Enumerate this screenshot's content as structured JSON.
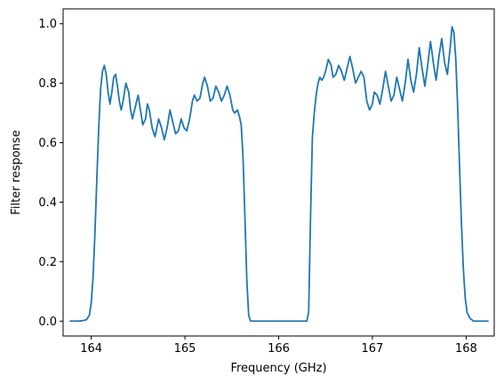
{
  "chart_data": {
    "type": "line",
    "title": "",
    "xlabel": "Frequency (GHz)",
    "ylabel": "Filter response",
    "xlim": [
      163.7,
      168.3
    ],
    "ylim": [
      -0.05,
      1.05
    ],
    "xticks": [
      164,
      165,
      166,
      167,
      168
    ],
    "xtick_labels": [
      "164",
      "165",
      "166",
      "167",
      "168"
    ],
    "yticks": [
      0.0,
      0.2,
      0.4,
      0.6,
      0.8,
      1.0
    ],
    "ytick_labels": [
      "0.0",
      "0.2",
      "0.4",
      "0.6",
      "0.8",
      "1.0"
    ],
    "grid": false,
    "legend": "none",
    "series": [
      {
        "color": "#1f77b4",
        "points": [
          [
            163.77,
            0.0
          ],
          [
            163.85,
            0.0
          ],
          [
            163.9,
            0.001
          ],
          [
            163.95,
            0.005
          ],
          [
            163.98,
            0.02
          ],
          [
            164.0,
            0.06
          ],
          [
            164.02,
            0.15
          ],
          [
            164.04,
            0.3
          ],
          [
            164.06,
            0.48
          ],
          [
            164.08,
            0.65
          ],
          [
            164.1,
            0.78
          ],
          [
            164.12,
            0.84
          ],
          [
            164.14,
            0.86
          ],
          [
            164.16,
            0.83
          ],
          [
            164.18,
            0.77
          ],
          [
            164.2,
            0.73
          ],
          [
            164.22,
            0.77
          ],
          [
            164.24,
            0.82
          ],
          [
            164.26,
            0.83
          ],
          [
            164.28,
            0.79
          ],
          [
            164.3,
            0.74
          ],
          [
            164.32,
            0.71
          ],
          [
            164.34,
            0.74
          ],
          [
            164.37,
            0.8
          ],
          [
            164.4,
            0.77
          ],
          [
            164.42,
            0.71
          ],
          [
            164.44,
            0.68
          ],
          [
            164.47,
            0.72
          ],
          [
            164.5,
            0.76
          ],
          [
            164.52,
            0.72
          ],
          [
            164.55,
            0.66
          ],
          [
            164.58,
            0.68
          ],
          [
            164.6,
            0.73
          ],
          [
            164.62,
            0.71
          ],
          [
            164.65,
            0.65
          ],
          [
            164.68,
            0.62
          ],
          [
            164.7,
            0.65
          ],
          [
            164.72,
            0.68
          ],
          [
            164.75,
            0.65
          ],
          [
            164.78,
            0.61
          ],
          [
            164.81,
            0.65
          ],
          [
            164.84,
            0.71
          ],
          [
            164.87,
            0.67
          ],
          [
            164.9,
            0.63
          ],
          [
            164.93,
            0.64
          ],
          [
            164.96,
            0.68
          ],
          [
            164.99,
            0.65
          ],
          [
            165.02,
            0.64
          ],
          [
            165.05,
            0.68
          ],
          [
            165.08,
            0.74
          ],
          [
            165.1,
            0.76
          ],
          [
            165.13,
            0.74
          ],
          [
            165.16,
            0.75
          ],
          [
            165.19,
            0.8
          ],
          [
            165.21,
            0.82
          ],
          [
            165.24,
            0.79
          ],
          [
            165.27,
            0.74
          ],
          [
            165.3,
            0.75
          ],
          [
            165.33,
            0.79
          ],
          [
            165.36,
            0.77
          ],
          [
            165.39,
            0.74
          ],
          [
            165.42,
            0.76
          ],
          [
            165.45,
            0.79
          ],
          [
            165.48,
            0.76
          ],
          [
            165.51,
            0.71
          ],
          [
            165.53,
            0.7
          ],
          [
            165.56,
            0.71
          ],
          [
            165.58,
            0.69
          ],
          [
            165.6,
            0.66
          ],
          [
            165.62,
            0.55
          ],
          [
            165.64,
            0.35
          ],
          [
            165.66,
            0.14
          ],
          [
            165.68,
            0.02
          ],
          [
            165.7,
            0.0
          ],
          [
            166.0,
            0.0
          ],
          [
            166.25,
            0.0
          ],
          [
            166.3,
            0.0
          ],
          [
            166.32,
            0.03
          ],
          [
            166.34,
            0.35
          ],
          [
            166.36,
            0.62
          ],
          [
            166.38,
            0.7
          ],
          [
            166.4,
            0.76
          ],
          [
            166.42,
            0.8
          ],
          [
            166.44,
            0.82
          ],
          [
            166.46,
            0.81
          ],
          [
            166.48,
            0.82
          ],
          [
            166.5,
            0.84
          ],
          [
            166.53,
            0.88
          ],
          [
            166.56,
            0.86
          ],
          [
            166.58,
            0.82
          ],
          [
            166.61,
            0.83
          ],
          [
            166.64,
            0.86
          ],
          [
            166.67,
            0.84
          ],
          [
            166.7,
            0.81
          ],
          [
            166.73,
            0.85
          ],
          [
            166.76,
            0.89
          ],
          [
            166.79,
            0.85
          ],
          [
            166.82,
            0.8
          ],
          [
            166.85,
            0.82
          ],
          [
            166.88,
            0.84
          ],
          [
            166.91,
            0.82
          ],
          [
            166.94,
            0.74
          ],
          [
            166.97,
            0.71
          ],
          [
            167.0,
            0.73
          ],
          [
            167.02,
            0.77
          ],
          [
            167.05,
            0.76
          ],
          [
            167.08,
            0.73
          ],
          [
            167.11,
            0.78
          ],
          [
            167.14,
            0.84
          ],
          [
            167.17,
            0.79
          ],
          [
            167.2,
            0.74
          ],
          [
            167.23,
            0.76
          ],
          [
            167.26,
            0.82
          ],
          [
            167.29,
            0.78
          ],
          [
            167.32,
            0.74
          ],
          [
            167.35,
            0.8
          ],
          [
            167.38,
            0.88
          ],
          [
            167.41,
            0.81
          ],
          [
            167.44,
            0.77
          ],
          [
            167.47,
            0.83
          ],
          [
            167.5,
            0.92
          ],
          [
            167.53,
            0.85
          ],
          [
            167.56,
            0.79
          ],
          [
            167.59,
            0.86
          ],
          [
            167.62,
            0.94
          ],
          [
            167.65,
            0.87
          ],
          [
            167.68,
            0.81
          ],
          [
            167.71,
            0.89
          ],
          [
            167.74,
            0.95
          ],
          [
            167.77,
            0.87
          ],
          [
            167.8,
            0.83
          ],
          [
            167.83,
            0.92
          ],
          [
            167.85,
            0.99
          ],
          [
            167.87,
            0.97
          ],
          [
            167.89,
            0.88
          ],
          [
            167.91,
            0.72
          ],
          [
            167.93,
            0.52
          ],
          [
            167.95,
            0.33
          ],
          [
            167.97,
            0.18
          ],
          [
            167.99,
            0.08
          ],
          [
            168.01,
            0.03
          ],
          [
            168.04,
            0.01
          ],
          [
            168.08,
            0.0
          ],
          [
            168.15,
            0.0
          ],
          [
            168.24,
            0.0
          ]
        ]
      }
    ]
  }
}
